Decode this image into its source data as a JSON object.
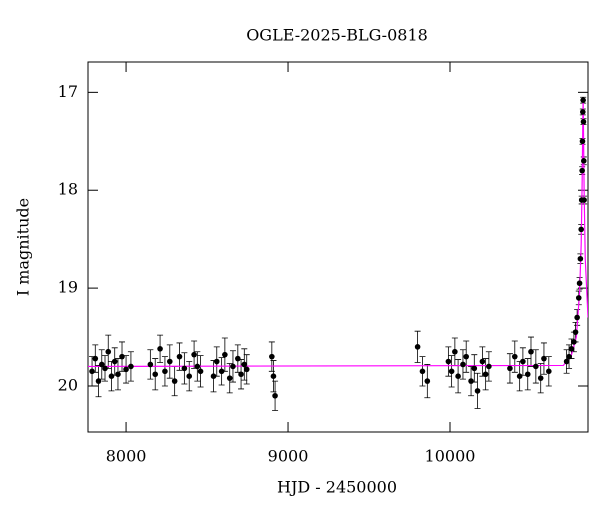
{
  "chart_data": {
    "type": "scatter",
    "title": "OGLE-2025-BLG-0818",
    "x_label": "HJD - 2450000",
    "y_label": "I magnitude",
    "xlim": [
      7765,
      10852
    ],
    "ylim": [
      16.69,
      20.47
    ],
    "y_inverted": true,
    "xticks": [
      8000,
      9000,
      10000
    ],
    "yticks": [
      17,
      18,
      19,
      20
    ],
    "points": {
      "color": "#000000",
      "x": [
        7790,
        7810,
        7830,
        7850,
        7870,
        7890,
        7910,
        7930,
        7950,
        7975,
        8000,
        8030,
        8150,
        8180,
        8210,
        8240,
        8270,
        8300,
        8330,
        8360,
        8390,
        8420,
        8440,
        8460,
        8540,
        8560,
        8590,
        8610,
        8640,
        8660,
        8690,
        8710,
        8730,
        8745,
        8900,
        8910,
        8920,
        9800,
        9830,
        9860,
        9990,
        10010,
        10030,
        10050,
        10080,
        10100,
        10130,
        10150,
        10170,
        10200,
        10220,
        10240,
        10370,
        10400,
        10430,
        10450,
        10480,
        10500,
        10530,
        10560,
        10580,
        10610,
        10720,
        10735,
        10750,
        10765,
        10775,
        10785,
        10795,
        10800,
        10805,
        10810,
        10813,
        10816,
        10818,
        10820,
        10822,
        10824,
        10826,
        10828
      ],
      "values": [
        19.85,
        19.72,
        19.95,
        19.78,
        19.82,
        19.65,
        19.9,
        19.75,
        19.88,
        19.7,
        19.83,
        19.8,
        19.78,
        19.88,
        19.62,
        19.85,
        19.75,
        19.95,
        19.7,
        19.82,
        19.9,
        19.68,
        19.8,
        19.85,
        19.9,
        19.75,
        19.85,
        19.68,
        19.92,
        19.8,
        19.72,
        19.88,
        19.78,
        19.83,
        19.7,
        19.9,
        20.1,
        19.6,
        19.85,
        19.95,
        19.75,
        19.85,
        19.65,
        19.9,
        19.78,
        19.7,
        19.95,
        19.82,
        20.05,
        19.75,
        19.88,
        19.8,
        19.82,
        19.7,
        19.9,
        19.75,
        19.88,
        19.65,
        19.8,
        19.92,
        19.72,
        19.85,
        19.75,
        19.7,
        19.62,
        19.55,
        19.45,
        19.3,
        19.1,
        18.95,
        18.7,
        18.4,
        18.1,
        17.8,
        17.5,
        17.2,
        17.08,
        17.3,
        17.7,
        18.1
      ],
      "errors": [
        0.15,
        0.14,
        0.16,
        0.15,
        0.13,
        0.17,
        0.15,
        0.14,
        0.16,
        0.15,
        0.14,
        0.15,
        0.15,
        0.16,
        0.14,
        0.15,
        0.17,
        0.15,
        0.14,
        0.16,
        0.15,
        0.14,
        0.15,
        0.16,
        0.16,
        0.15,
        0.14,
        0.17,
        0.15,
        0.16,
        0.14,
        0.15,
        0.16,
        0.15,
        0.15,
        0.16,
        0.15,
        0.16,
        0.15,
        0.17,
        0.15,
        0.16,
        0.14,
        0.17,
        0.15,
        0.16,
        0.15,
        0.14,
        0.18,
        0.15,
        0.16,
        0.15,
        0.15,
        0.16,
        0.15,
        0.14,
        0.16,
        0.15,
        0.17,
        0.15,
        0.16,
        0.15,
        0.12,
        0.12,
        0.1,
        0.1,
        0.1,
        0.08,
        0.07,
        0.06,
        0.05,
        0.05,
        0.04,
        0.04,
        0.03,
        0.03,
        0.03,
        0.03,
        0.04,
        0.04
      ]
    },
    "model": {
      "color": "#ff00ff",
      "x": [
        7765,
        10700,
        10750,
        10780,
        10800,
        10810,
        10816,
        10820,
        10822,
        10824,
        10828,
        10835,
        10852
      ],
      "values": [
        19.8,
        19.79,
        19.68,
        19.5,
        19.05,
        18.55,
        17.9,
        17.3,
        17.07,
        17.35,
        18.0,
        18.7,
        19.3
      ]
    }
  }
}
